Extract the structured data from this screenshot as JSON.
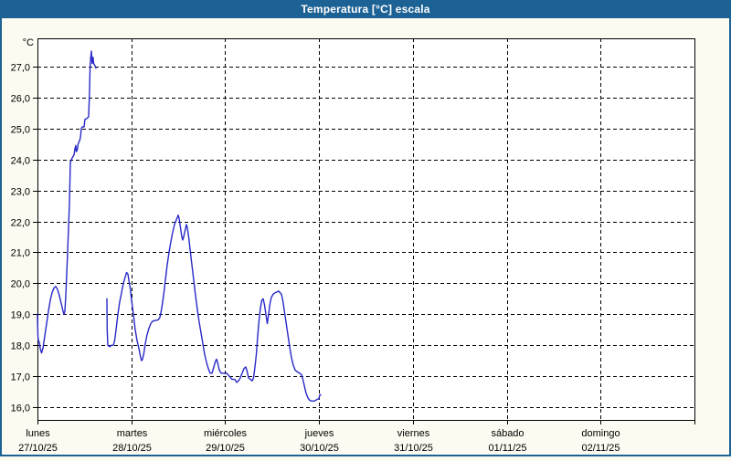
{
  "window": {
    "title": "Temperatura [°C] escala"
  },
  "colors": {
    "titlebar_bg": "#1d6295",
    "window_border": "#1d6295",
    "window_bg": "#fbfbf1",
    "plot_bg": "#ffffff",
    "grid": "#000000",
    "axis": "#000000",
    "series_line": "#2828c8",
    "title_text": "#ffffff",
    "label_text": "#000000"
  },
  "chart_data": {
    "type": "line",
    "title": "Temperatura [°C] escala",
    "y_unit_label": "°C",
    "ylim": [
      15.59,
      27.91
    ],
    "y_ticks": [
      16,
      17,
      18,
      19,
      20,
      21,
      22,
      23,
      24,
      25,
      26,
      27
    ],
    "y_tick_labels": [
      "16,0",
      "17,0",
      "18,0",
      "19,0",
      "20,0",
      "21,0",
      "22,0",
      "23,0",
      "24,0",
      "25,0",
      "26,0",
      "27,0"
    ],
    "decimal_separator": ",",
    "grid": true,
    "x_total_hours": 168,
    "hours_per_day": 24,
    "x_days": [
      {
        "name": "lunes",
        "date": "27/10/25"
      },
      {
        "name": "martes",
        "date": "28/10/25"
      },
      {
        "name": "miércoles",
        "date": "29/10/25"
      },
      {
        "name": "jueves",
        "date": "30/10/25"
      },
      {
        "name": "viernes",
        "date": "31/10/25"
      },
      {
        "name": "sábado",
        "date": "01/11/25"
      },
      {
        "name": "domingo",
        "date": "02/11/25"
      }
    ],
    "series": [
      {
        "name": "Temperatura",
        "color": "#2828c8",
        "segments": [
          [
            [
              0,
              19.0
            ],
            [
              0.12,
              18.3
            ],
            [
              0.23,
              18.15
            ],
            [
              0.47,
              18.1
            ],
            [
              0.7,
              17.9
            ],
            [
              1.05,
              17.75
            ],
            [
              1.4,
              17.9
            ],
            [
              1.87,
              18.3
            ],
            [
              2.34,
              18.7
            ],
            [
              2.8,
              19.1
            ],
            [
              3.27,
              19.45
            ],
            [
              3.74,
              19.7
            ],
            [
              4.21,
              19.85
            ],
            [
              4.67,
              19.9
            ],
            [
              5.14,
              19.8
            ],
            [
              5.61,
              19.6
            ],
            [
              6.08,
              19.35
            ],
            [
              6.54,
              19.1
            ],
            [
              6.78,
              19.0
            ],
            [
              7.01,
              19.1
            ],
            [
              7.24,
              19.6
            ],
            [
              7.48,
              20.3
            ],
            [
              7.71,
              21.0
            ],
            [
              7.95,
              21.8
            ],
            [
              8.18,
              22.6
            ],
            [
              8.41,
              23.9
            ],
            [
              8.88,
              24.05
            ],
            [
              9.35,
              24.15
            ],
            [
              9.58,
              24.35
            ],
            [
              9.81,
              24.45
            ],
            [
              9.93,
              24.25
            ],
            [
              10.16,
              24.3
            ],
            [
              10.4,
              24.5
            ],
            [
              10.75,
              24.6
            ],
            [
              10.98,
              24.7
            ],
            [
              11.22,
              25.0
            ],
            [
              11.45,
              25.05
            ],
            [
              11.92,
              25.05
            ],
            [
              12.15,
              25.3
            ],
            [
              12.62,
              25.32
            ],
            [
              13.08,
              25.38
            ],
            [
              13.32,
              26.2
            ],
            [
              13.43,
              26.9
            ],
            [
              13.55,
              27.2
            ],
            [
              13.78,
              27.5
            ],
            [
              13.97,
              27.1
            ],
            [
              14.2,
              27.3
            ],
            [
              14.37,
              27.1
            ],
            [
              14.6,
              27.05
            ],
            [
              14.95,
              26.95
            ]
          ],
          [
            [
              17.75,
              19.5
            ],
            [
              17.82,
              18.5
            ],
            [
              17.99,
              18.0
            ],
            [
              18.46,
              17.95
            ],
            [
              18.93,
              18.0
            ],
            [
              19.4,
              18.0
            ],
            [
              19.75,
              18.15
            ],
            [
              20.1,
              18.5
            ],
            [
              20.56,
              19.0
            ],
            [
              21.03,
              19.4
            ],
            [
              21.5,
              19.7
            ],
            [
              21.97,
              20.0
            ],
            [
              22.43,
              20.2
            ],
            [
              22.78,
              20.35
            ],
            [
              23.13,
              20.3
            ],
            [
              23.37,
              20.1
            ],
            [
              23.72,
              19.85
            ],
            [
              24.07,
              19.45
            ],
            [
              24.54,
              19.0
            ],
            [
              25.0,
              18.5
            ],
            [
              25.47,
              18.15
            ],
            [
              25.94,
              17.9
            ],
            [
              26.41,
              17.6
            ],
            [
              26.64,
              17.5
            ],
            [
              26.87,
              17.55
            ],
            [
              27.22,
              17.75
            ],
            [
              27.57,
              18.05
            ],
            [
              28.04,
              18.35
            ],
            [
              28.51,
              18.55
            ],
            [
              28.98,
              18.7
            ],
            [
              29.44,
              18.78
            ],
            [
              30.14,
              18.8
            ],
            [
              30.84,
              18.82
            ],
            [
              31.31,
              18.9
            ],
            [
              31.78,
              19.2
            ],
            [
              32.24,
              19.6
            ],
            [
              32.71,
              20.1
            ],
            [
              33.18,
              20.6
            ],
            [
              33.65,
              21.0
            ],
            [
              34.11,
              21.35
            ],
            [
              34.58,
              21.65
            ],
            [
              35.05,
              21.9
            ],
            [
              35.51,
              22.05
            ],
            [
              35.98,
              22.2
            ],
            [
              36.21,
              22.1
            ],
            [
              36.57,
              21.8
            ],
            [
              36.92,
              21.5
            ],
            [
              37.15,
              21.4
            ],
            [
              37.38,
              21.5
            ],
            [
              37.73,
              21.7
            ],
            [
              38.08,
              21.9
            ],
            [
              38.32,
              21.8
            ],
            [
              38.67,
              21.5
            ],
            [
              39.02,
              21.1
            ],
            [
              39.49,
              20.6
            ],
            [
              39.95,
              20.1
            ],
            [
              40.42,
              19.6
            ],
            [
              40.89,
              19.15
            ],
            [
              41.36,
              18.75
            ],
            [
              41.82,
              18.4
            ],
            [
              42.29,
              18.05
            ],
            [
              42.76,
              17.7
            ],
            [
              43.23,
              17.45
            ],
            [
              43.69,
              17.25
            ],
            [
              44.16,
              17.1
            ],
            [
              44.63,
              17.1
            ],
            [
              45.1,
              17.3
            ],
            [
              45.56,
              17.5
            ],
            [
              45.8,
              17.55
            ],
            [
              46.15,
              17.4
            ],
            [
              46.5,
              17.2
            ],
            [
              46.96,
              17.1
            ],
            [
              47.66,
              17.1
            ],
            [
              48.36,
              17.1
            ],
            [
              49.06,
              17.0
            ],
            [
              49.77,
              16.9
            ],
            [
              50.47,
              16.9
            ],
            [
              50.93,
              16.8
            ],
            [
              51.4,
              16.85
            ],
            [
              51.87,
              16.95
            ],
            [
              52.34,
              17.1
            ],
            [
              52.8,
              17.25
            ],
            [
              53.27,
              17.3
            ],
            [
              53.62,
              17.15
            ],
            [
              53.97,
              16.95
            ],
            [
              54.44,
              16.9
            ],
            [
              54.91,
              16.85
            ],
            [
              55.26,
              16.95
            ],
            [
              55.61,
              17.3
            ],
            [
              55.96,
              17.7
            ],
            [
              56.31,
              18.3
            ],
            [
              56.66,
              18.8
            ],
            [
              57.01,
              19.2
            ],
            [
              57.36,
              19.45
            ],
            [
              57.71,
              19.5
            ],
            [
              58.06,
              19.3
            ],
            [
              58.41,
              19.0
            ],
            [
              58.76,
              18.7
            ],
            [
              59.11,
              19.0
            ],
            [
              59.46,
              19.35
            ],
            [
              59.81,
              19.55
            ],
            [
              60.28,
              19.65
            ],
            [
              60.74,
              19.7
            ],
            [
              61.21,
              19.72
            ],
            [
              61.68,
              19.75
            ],
            [
              62.03,
              19.7
            ],
            [
              62.38,
              19.65
            ],
            [
              62.73,
              19.45
            ],
            [
              63.08,
              19.15
            ],
            [
              63.55,
              18.75
            ],
            [
              64.02,
              18.35
            ],
            [
              64.48,
              17.95
            ],
            [
              64.95,
              17.6
            ],
            [
              65.42,
              17.35
            ],
            [
              65.89,
              17.2
            ],
            [
              66.35,
              17.15
            ],
            [
              67.05,
              17.1
            ],
            [
              67.52,
              17.05
            ],
            [
              67.87,
              16.9
            ],
            [
              68.22,
              16.7
            ],
            [
              68.69,
              16.45
            ],
            [
              69.16,
              16.3
            ],
            [
              69.63,
              16.22
            ],
            [
              70.09,
              16.2
            ],
            [
              70.79,
              16.2
            ],
            [
              71.5,
              16.25
            ],
            [
              71.96,
              16.28
            ],
            [
              72.2,
              16.4
            ],
            [
              72.43,
              16.4
            ]
          ]
        ]
      }
    ]
  }
}
